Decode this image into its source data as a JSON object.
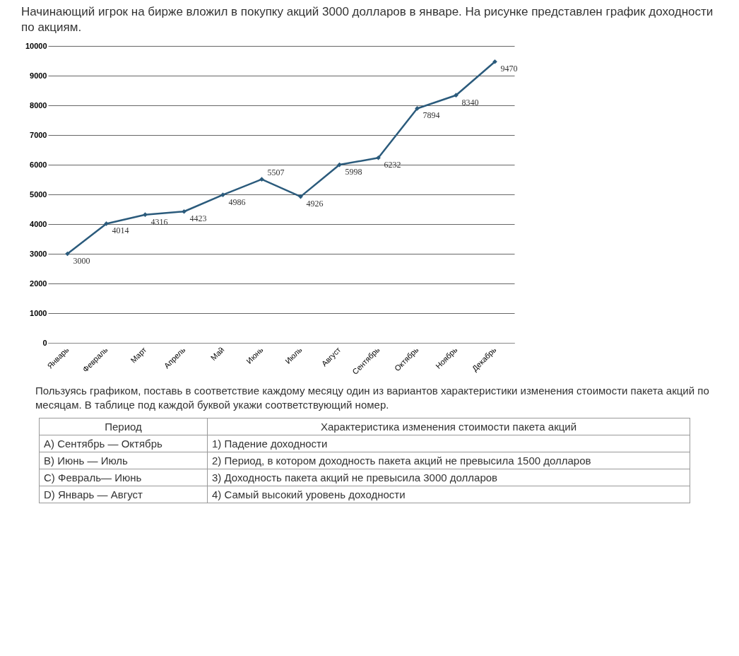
{
  "chart_data": {
    "type": "line",
    "title": "Начинающий игрок на бирже вложил в покупку акций 3000 долларов в январе. На рисунке представлен график доходности по акциям.",
    "categories": [
      "Январь",
      "Февраль",
      "Март",
      "Апрель",
      "Май",
      "Июнь",
      "Июль",
      "Август",
      "Сентябрь",
      "Октябрь",
      "Ноябрь",
      "Декабрь"
    ],
    "values": [
      3000,
      4014,
      4316,
      4423,
      4986,
      5507,
      4926,
      5998,
      6232,
      7894,
      8340,
      9470
    ],
    "color": "#2b5b7c",
    "ylim": [
      0,
      10000
    ],
    "yticks": [
      0,
      1000,
      2000,
      3000,
      4000,
      5000,
      6000,
      7000,
      8000,
      9000,
      10000
    ],
    "grid": "y",
    "marker": "diamond",
    "line_style": "solid",
    "data_labels": true,
    "annotations": [
      "Пользуясь графиком, поставь в соответствие каждому месяцу один из вариантов характеристики изменения стоимости пакета акций по месяцам. В таблице под каждой буквой укажи соответствующий номер.",
      "Период",
      "Характеристика изменения стоимости пакета акций",
      "А) Сентябрь — Октябрь",
      "1) Падение доходности",
      "В) Июнь — Июль",
      "2) Период, в котором доходность пакета акций не превысила 1500 долларов",
      "С) Февраль— Июнь",
      "3) Доходность пакета акций не превысила 3000 долларов",
      "D) Январь — Август",
      "4) Самый высокий уровень доходности"
    ]
  }
}
